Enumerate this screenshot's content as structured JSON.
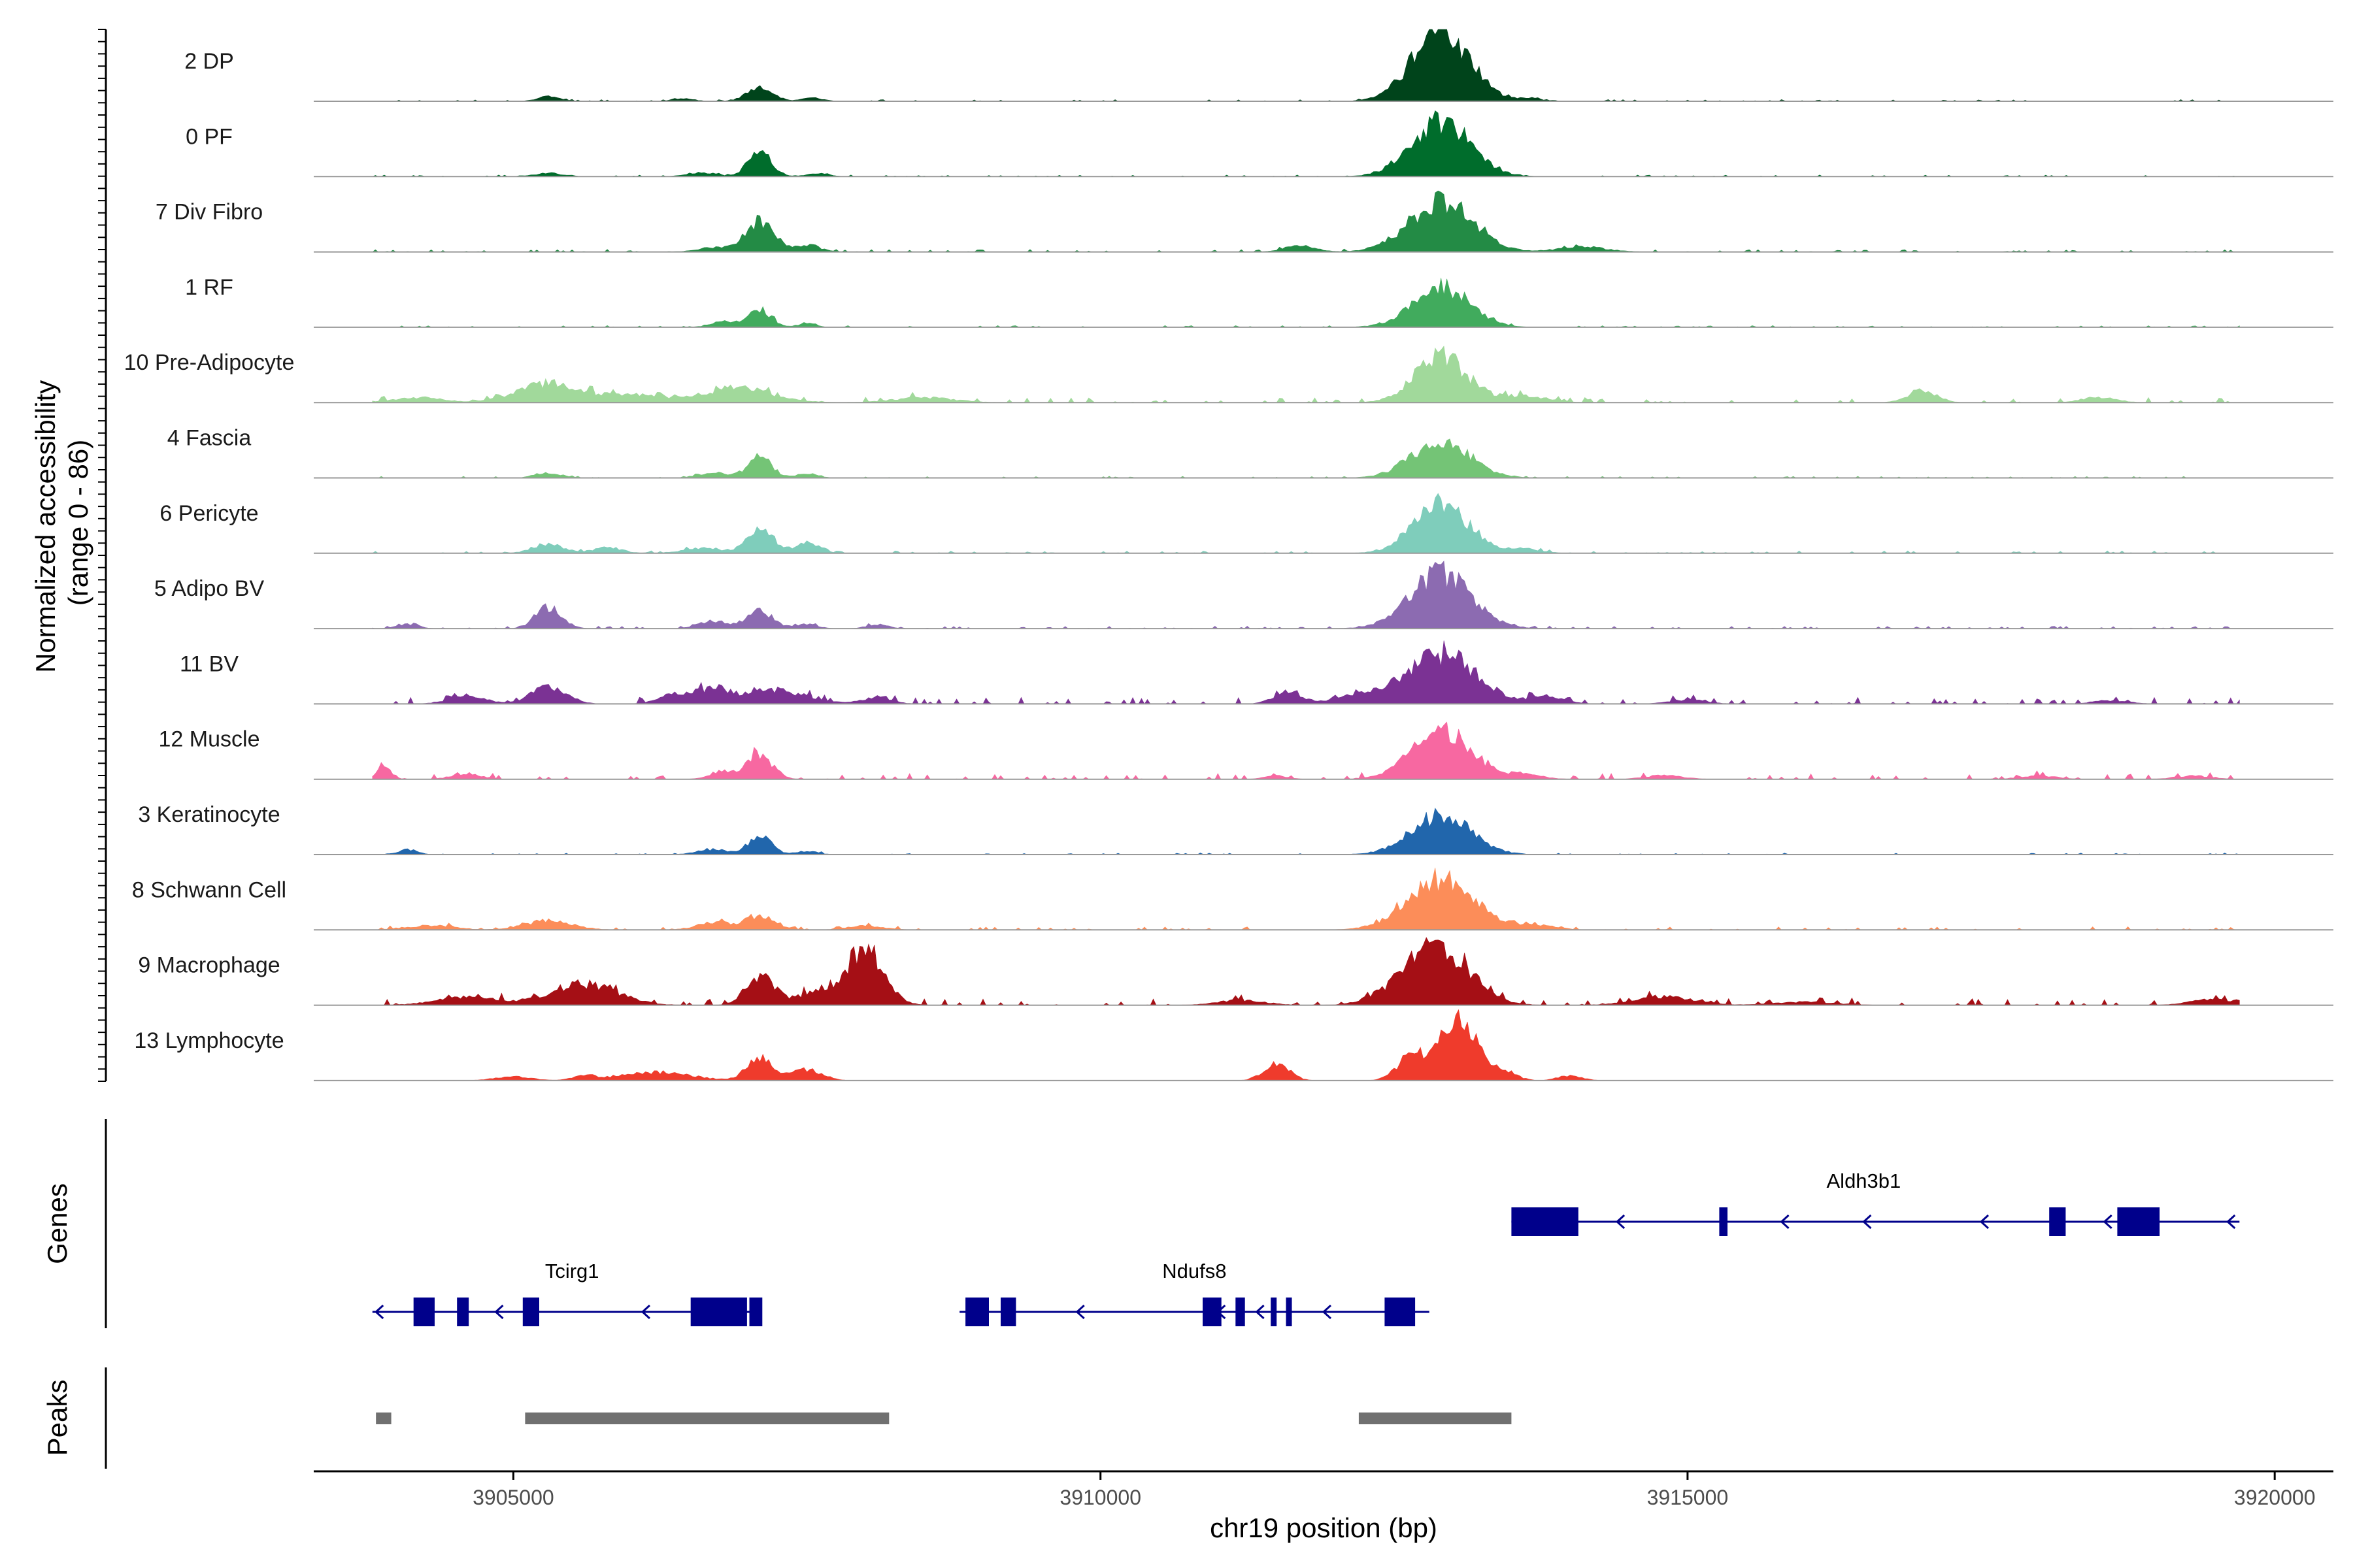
{
  "chart_data": {
    "type": "area",
    "title": "",
    "xlabel": "chr19 position (bp)",
    "ylabel": "Normalized accessibility\n(range 0 - 86)",
    "ylabel_lines": [
      "Normalized accessibility",
      "(range 0 - 86)"
    ],
    "ylim": [
      0,
      86
    ],
    "xlim": [
      3903300,
      3920500
    ],
    "x_ticks": [
      3905000,
      3910000,
      3915000,
      3920000
    ],
    "x_tick_labels": [
      "3905000",
      "3910000",
      "3915000",
      "3920000"
    ],
    "grid": false,
    "region": {
      "chrom": "chr19",
      "start": 3903800,
      "end": 3919700
    },
    "section_labels": {
      "genes": "Genes",
      "peaks": "Peaks"
    },
    "baseline_color": "#999999",
    "tracks": [
      {
        "name": "2 DP",
        "color": "#00441B",
        "scale": 1.0,
        "noise": 2,
        "peaks": [
          [
            3912900,
            86,
            240
          ],
          [
            3907100,
            17,
            110
          ],
          [
            3905300,
            6,
            90
          ],
          [
            3907550,
            4,
            90
          ],
          [
            3906450,
            3,
            90
          ],
          [
            3913650,
            3,
            120
          ]
        ]
      },
      {
        "name": "0 PF",
        "color": "#006D2C",
        "scale": 1.0,
        "noise": 2,
        "peaks": [
          [
            3912900,
            66,
            250
          ],
          [
            3907100,
            29,
            100
          ],
          [
            3906600,
            5,
            120
          ],
          [
            3905300,
            4,
            120
          ],
          [
            3907600,
            4,
            90
          ]
        ]
      },
      {
        "name": "7 Div Fibro",
        "color": "#238B45",
        "scale": 1.0,
        "noise": 3,
        "peaks": [
          [
            3912900,
            60,
            270
          ],
          [
            3907100,
            36,
            120
          ],
          [
            3907500,
            8,
            110
          ],
          [
            3911700,
            7,
            130
          ],
          [
            3914100,
            6,
            200
          ],
          [
            3906700,
            5,
            140
          ]
        ]
      },
      {
        "name": "1 RF",
        "color": "#41AB5D",
        "scale": 1.0,
        "noise": 2,
        "peaks": [
          [
            3912900,
            48,
            240
          ],
          [
            3907100,
            20,
            100
          ],
          [
            3906800,
            7,
            110
          ],
          [
            3907500,
            5,
            70
          ]
        ]
      },
      {
        "name": "10 Pre-Adipocyte",
        "color": "#A1D99B",
        "scale": 1.0,
        "noise": 6,
        "peaks": [
          [
            3912900,
            55,
            220
          ],
          [
            3905300,
            23,
            260
          ],
          [
            3906900,
            17,
            300
          ],
          [
            3913600,
            8,
            200
          ],
          [
            3906000,
            9,
            250
          ],
          [
            3904200,
            6,
            200
          ],
          [
            3917000,
            15,
            120
          ],
          [
            3918500,
            6,
            150
          ],
          [
            3908500,
            6,
            250
          ]
        ]
      },
      {
        "name": "4 Fascia",
        "color": "#74C476",
        "scale": 1.0,
        "noise": 2,
        "peaks": [
          [
            3912900,
            43,
            250
          ],
          [
            3907100,
            25,
            100
          ],
          [
            3906700,
            6,
            130
          ],
          [
            3905300,
            6,
            110
          ],
          [
            3907500,
            5,
            90
          ]
        ]
      },
      {
        "name": "6 Pericyte",
        "color": "#7FCDBB",
        "scale": 1.0,
        "noise": 3,
        "peaks": [
          [
            3912900,
            60,
            230
          ],
          [
            3907100,
            30,
            110
          ],
          [
            3905300,
            11,
            130
          ],
          [
            3907500,
            13,
            100
          ],
          [
            3905800,
            7,
            120
          ],
          [
            3906600,
            6,
            150
          ],
          [
            3913600,
            5,
            150
          ]
        ]
      },
      {
        "name": "5 Adipo BV",
        "color": "#8C6BB1",
        "scale": 1.0,
        "noise": 3,
        "peaks": [
          [
            3912900,
            65,
            260
          ],
          [
            3905300,
            25,
            110
          ],
          [
            3907100,
            21,
            110
          ],
          [
            3906700,
            9,
            120
          ],
          [
            3904100,
            5,
            90
          ],
          [
            3907500,
            5,
            90
          ],
          [
            3908100,
            5,
            90
          ]
        ]
      },
      {
        "name": "11 BV",
        "color": "#7B3294",
        "scale": 1.0,
        "noise": 8,
        "peaks": [
          [
            3912900,
            60,
            290
          ],
          [
            3905300,
            20,
            150
          ],
          [
            3907200,
            16,
            300
          ],
          [
            3911600,
            14,
            120
          ],
          [
            3906400,
            11,
            150
          ],
          [
            3906700,
            14,
            120
          ],
          [
            3904600,
            10,
            150
          ],
          [
            3912200,
            9,
            200
          ],
          [
            3913800,
            8,
            150
          ],
          [
            3908100,
            8,
            120
          ],
          [
            3915000,
            5,
            150
          ],
          [
            3918600,
            4,
            150
          ]
        ]
      },
      {
        "name": "12 Muscle",
        "color": "#F768A1",
        "scale": 1.0,
        "noise": 7,
        "peaks": [
          [
            3912900,
            58,
            250
          ],
          [
            3907100,
            28,
            110
          ],
          [
            3903900,
            14,
            60
          ],
          [
            3906800,
            8,
            120
          ],
          [
            3904600,
            7,
            120
          ],
          [
            3913600,
            6,
            150
          ],
          [
            3914800,
            5,
            150
          ],
          [
            3918000,
            4,
            150
          ],
          [
            3919300,
            4,
            150
          ],
          [
            3911500,
            4,
            100
          ]
        ]
      },
      {
        "name": "3 Keratinocyte",
        "color": "#2166AC",
        "scale": 1.0,
        "noise": 2,
        "peaks": [
          [
            3912900,
            48,
            250
          ],
          [
            3907100,
            21,
            100
          ],
          [
            3904100,
            6,
            80
          ],
          [
            3906700,
            6,
            130
          ],
          [
            3907500,
            4,
            90
          ]
        ]
      },
      {
        "name": "8 Schwann Cell",
        "color": "#FC8D59",
        "scale": 1.0,
        "noise": 4,
        "peaks": [
          [
            3912900,
            60,
            280
          ],
          [
            3905300,
            11,
            200
          ],
          [
            3907100,
            16,
            130
          ],
          [
            3906700,
            9,
            140
          ],
          [
            3908000,
            5,
            150
          ],
          [
            3913700,
            6,
            170
          ],
          [
            3904300,
            5,
            200
          ]
        ]
      },
      {
        "name": "9 Macrophage",
        "color": "#A50F15",
        "scale": 1.0,
        "noise": 8,
        "peaks": [
          [
            3912900,
            64,
            260
          ],
          [
            3908000,
            65,
            160
          ],
          [
            3907100,
            35,
            120
          ],
          [
            3905600,
            25,
            280
          ],
          [
            3907600,
            16,
            180
          ],
          [
            3904600,
            10,
            250
          ],
          [
            3912500,
            12,
            200
          ],
          [
            3914800,
            10,
            250
          ],
          [
            3911200,
            6,
            200
          ],
          [
            3919500,
            7,
            200
          ],
          [
            3916000,
            4,
            250
          ]
        ]
      },
      {
        "name": "13 Lymphocyte",
        "color": "#EF3B2C",
        "scale": 1.0,
        "noise": 0,
        "peaks": [
          [
            3913050,
            72,
            160
          ],
          [
            3912650,
            30,
            120
          ],
          [
            3907100,
            26,
            110
          ],
          [
            3911500,
            19,
            110
          ],
          [
            3906200,
            10,
            300
          ],
          [
            3907500,
            13,
            130
          ],
          [
            3913450,
            10,
            100
          ],
          [
            3905000,
            5,
            150
          ],
          [
            3905600,
            5,
            100
          ],
          [
            3914000,
            6,
            100
          ]
        ]
      }
    ],
    "genes": [
      {
        "name": "Aldh3b1",
        "strand": "-",
        "row": 0,
        "start": 3913500,
        "end": 3919700,
        "label_x": 3916500,
        "exons": [
          [
            3913500,
            3914070
          ],
          [
            3915270,
            3915340
          ],
          [
            3918080,
            3918220
          ],
          [
            3918660,
            3919020
          ]
        ],
        "arrows": [
          3914400,
          3915800,
          3916500,
          3917500,
          3918550,
          3919600
        ]
      },
      {
        "name": "Tcirg1",
        "strand": "-",
        "row": 1,
        "start": 3903800,
        "end": 3907100,
        "label_x": 3905500,
        "exons": [
          [
            3904150,
            3904330
          ],
          [
            3904520,
            3904620
          ],
          [
            3905080,
            3905220
          ],
          [
            3906510,
            3906990
          ],
          [
            3907010,
            3907120
          ]
        ],
        "arrows": [
          3903830,
          3904850,
          3906100
        ]
      },
      {
        "name": "Ndufs8",
        "strand": "-",
        "row": 1,
        "start": 3908800,
        "end": 3912800,
        "label_x": 3910800,
        "exons": [
          [
            3908850,
            3909050
          ],
          [
            3909150,
            3909280
          ],
          [
            3910870,
            3911030
          ],
          [
            3911150,
            3911230
          ],
          [
            3911450,
            3911500
          ],
          [
            3911580,
            3911630
          ],
          [
            3912420,
            3912680
          ]
        ],
        "arrows": [
          3909800,
          3911000,
          3911330,
          3911900
        ]
      }
    ],
    "peaks": [
      [
        3903830,
        3903960
      ],
      [
        3905100,
        3908200
      ],
      [
        3912200,
        3913500
      ]
    ]
  }
}
